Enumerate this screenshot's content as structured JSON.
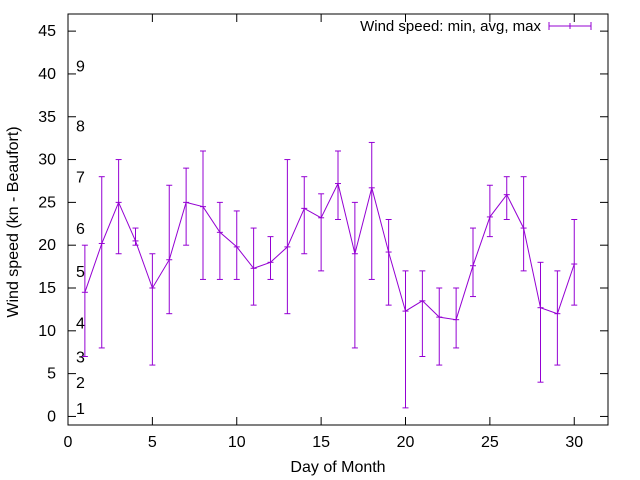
{
  "chart_data": {
    "type": "line",
    "subtype": "errorbar",
    "title": "",
    "xlabel": "Day of Month",
    "ylabel": "Wind speed (kn - Beaufort)",
    "xlim": [
      0,
      32
    ],
    "ylim": [
      -1,
      47
    ],
    "xticks": [
      0,
      5,
      10,
      15,
      20,
      25,
      30
    ],
    "yticks": [
      0,
      5,
      10,
      15,
      20,
      25,
      30,
      35,
      40,
      45
    ],
    "grid": false,
    "legend": {
      "label": "Wind speed: min, avg, max",
      "placement": "top-right"
    },
    "beaufort_labels": [
      {
        "label": "1",
        "y": 1
      },
      {
        "label": "2",
        "y": 4
      },
      {
        "label": "3",
        "y": 7
      },
      {
        "label": "4",
        "y": 11
      },
      {
        "label": "5",
        "y": 17
      },
      {
        "label": "6",
        "y": 22
      },
      {
        "label": "7",
        "y": 28
      },
      {
        "label": "8",
        "y": 34
      },
      {
        "label": "9",
        "y": 41
      }
    ],
    "series": [
      {
        "name": "Wind speed: min, avg, max",
        "color": "#9400d3",
        "x": [
          1,
          2,
          3,
          4,
          5,
          6,
          7,
          8,
          9,
          10,
          11,
          12,
          13,
          14,
          15,
          16,
          17,
          18,
          19,
          20,
          21,
          22,
          23,
          24,
          25,
          26,
          27,
          28,
          29,
          30
        ],
        "min": [
          7,
          8,
          19,
          20,
          6,
          12,
          20,
          16,
          16,
          16,
          13,
          16,
          12,
          19,
          17,
          23,
          8,
          16,
          13,
          1,
          7,
          6,
          8,
          14,
          21,
          23,
          17,
          4,
          6,
          13
        ],
        "avg": [
          14.5,
          20.2,
          25,
          20.5,
          15,
          18.3,
          25,
          24.5,
          21.5,
          19.8,
          17.3,
          18,
          19.8,
          24.3,
          23.2,
          27.2,
          19,
          26.7,
          19.2,
          12.3,
          13.5,
          11.6,
          11.3,
          17.6,
          23.3,
          25.9,
          22,
          12.7,
          12,
          17.8
        ],
        "max": [
          20,
          28,
          30,
          22,
          19,
          27,
          29,
          31,
          25,
          24,
          22,
          21,
          30,
          28,
          26,
          31,
          25,
          32,
          23,
          17,
          17,
          15,
          15,
          22,
          27,
          28,
          28,
          18,
          17,
          23
        ]
      }
    ]
  }
}
